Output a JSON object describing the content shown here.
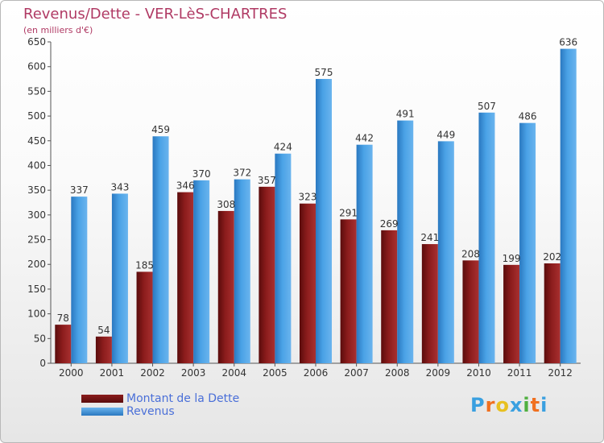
{
  "chart_data": {
    "type": "bar",
    "title": "Revenus/Dette - VER-LèS-CHARTRES",
    "subtitle": "(en milliers d'€)",
    "categories": [
      "2000",
      "2001",
      "2002",
      "2003",
      "2004",
      "2005",
      "2006",
      "2007",
      "2008",
      "2009",
      "2010",
      "2011",
      "2012"
    ],
    "series": [
      {
        "name": "Montant de la Dette",
        "color": "#8b1a1a",
        "values": [
          78,
          54,
          185,
          346,
          308,
          357,
          323,
          291,
          269,
          241,
          208,
          199,
          202
        ]
      },
      {
        "name": "Revenus",
        "color": "#3a8fd8",
        "values": [
          337,
          343,
          459,
          370,
          372,
          424,
          575,
          442,
          491,
          449,
          507,
          486,
          636
        ]
      }
    ],
    "ylim": [
      0,
      650
    ],
    "yticks": [
      0,
      50,
      100,
      150,
      200,
      250,
      300,
      350,
      400,
      450,
      500,
      550,
      600,
      650
    ],
    "grid": false,
    "legend": "bottom-left"
  },
  "logo": {
    "text": "Proxiti",
    "letters": [
      "P",
      "r",
      "o",
      "x",
      "i",
      "t",
      "i"
    ],
    "colors": [
      "#3aa0e0",
      "#f07020",
      "#e8c020",
      "#3aa0e0",
      "#50b040",
      "#f07020",
      "#3aa0e0"
    ]
  }
}
